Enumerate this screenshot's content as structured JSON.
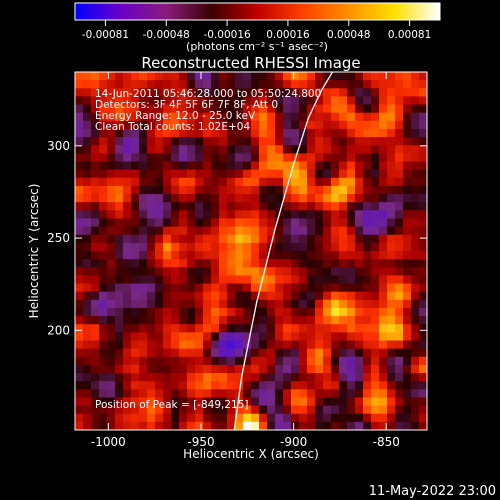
{
  "colorbar": {
    "ticks": [
      "-0.00081",
      "-0.00048",
      "-0.00016",
      "0.00016",
      "0.00048",
      "0.00081"
    ],
    "units": "(photons cm⁻² s⁻¹ asec⁻²)",
    "colors": [
      "#0000ff",
      "#6a00c8",
      "#8a1c7c",
      "#3a0000",
      "#c00000",
      "#ff4000",
      "#ff9000",
      "#ffe000",
      "#ffffff"
    ]
  },
  "plot": {
    "title": "Reconstructed RHESSI Image",
    "xlabel": "Heliocentric X (arcsec)",
    "ylabel": "Heliocentric Y (arcsec)",
    "info_lines": [
      "14-Jun-2011 05:46:28.000 to 05:50:24.800",
      "Detectors: 3F 4F 5F 6F 7F 8F, Att 0",
      "Energy Range: 12.0 - 25.0 keV",
      "Clean     Total counts: 1.02E+04"
    ],
    "peak_label": "Position of Peak = [-849,215]"
  },
  "footer": {
    "date": "11-May-2022 23:00"
  },
  "chart_data": {
    "type": "heatmap",
    "title": "Reconstructed RHESSI Image",
    "xlabel": "Heliocentric X (arcsec)",
    "ylabel": "Heliocentric Y (arcsec)",
    "xlim": [
      -1018,
      -828
    ],
    "ylim": [
      146,
      340
    ],
    "xticks": [
      -1000,
      -950,
      -900,
      -850
    ],
    "yticks": [
      200,
      250,
      300
    ],
    "value_range": [
      -0.00081,
      0.00081
    ],
    "peak": {
      "x": -849,
      "y": 215
    },
    "limb_curve": {
      "x": [
        -932,
        -928,
        -920,
        -910,
        -900,
        -892,
        -885,
        -879
      ],
      "y": [
        146,
        175,
        215,
        255,
        290,
        315,
        330,
        340
      ]
    }
  }
}
